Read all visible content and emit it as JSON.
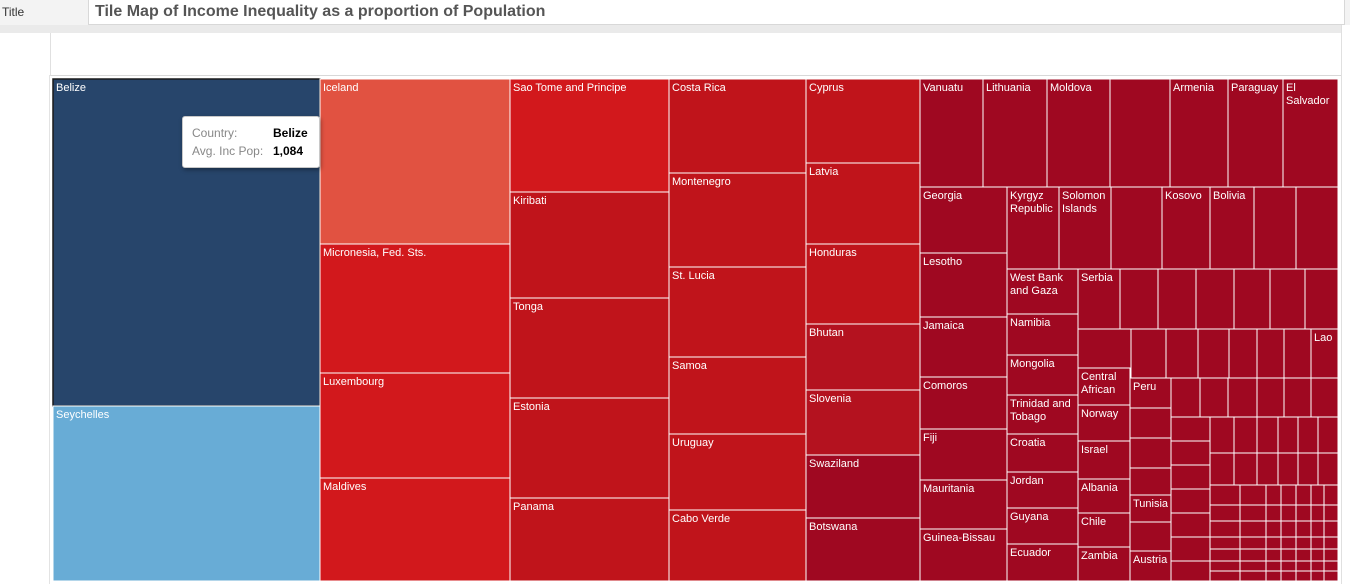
{
  "title_bar": {
    "label": "Title",
    "text": "Tile Map of Income Inequality as a proportion of  Population"
  },
  "colors": {
    "selected": "#27456b",
    "light_blue": "#68acd6",
    "orange_red": "#e15241",
    "red": "#d2181c",
    "red_mid": "#c0141b",
    "red_dark": "#b4121f",
    "crimson": "#9f0821",
    "tile_border": "#ffffff",
    "selected_border": "#1a1a1a"
  },
  "tooltip": {
    "country_label": "Country:",
    "country_value": "Belize",
    "measure_label": "Avg. Inc Pop:",
    "measure_value": "1,084"
  },
  "chart_data": {
    "type": "treemap",
    "title": "Tile Map of Income Inequality as a proportion of  Population",
    "measure": "Avg. Inc Pop",
    "selected": "Belize",
    "labeled_tiles": [
      {
        "label": "Belize",
        "value": 1084
      },
      {
        "label": "Seychelles"
      },
      {
        "label": "Iceland"
      },
      {
        "label": "Micronesia, Fed. Sts."
      },
      {
        "label": "Luxembourg"
      },
      {
        "label": "Maldives"
      },
      {
        "label": "Sao Tome and Principe"
      },
      {
        "label": "Kiribati"
      },
      {
        "label": "Tonga"
      },
      {
        "label": "Estonia"
      },
      {
        "label": "Panama"
      },
      {
        "label": "Costa Rica"
      },
      {
        "label": "Montenegro"
      },
      {
        "label": "St. Lucia"
      },
      {
        "label": "Samoa"
      },
      {
        "label": "Uruguay"
      },
      {
        "label": "Cabo Verde"
      },
      {
        "label": "Cyprus"
      },
      {
        "label": "Latvia"
      },
      {
        "label": "Honduras"
      },
      {
        "label": "Bhutan"
      },
      {
        "label": "Slovenia"
      },
      {
        "label": "Swaziland"
      },
      {
        "label": "Botswana"
      },
      {
        "label": "Vanuatu"
      },
      {
        "label": "Lithuania"
      },
      {
        "label": "Moldova"
      },
      {
        "label": "Armenia"
      },
      {
        "label": "Paraguay"
      },
      {
        "label": "El Salvador"
      },
      {
        "label": "Georgia"
      },
      {
        "label": "Kyrgyz Republic"
      },
      {
        "label": "Solomon Islands"
      },
      {
        "label": "Kosovo"
      },
      {
        "label": "Bolivia"
      },
      {
        "label": "Lesotho"
      },
      {
        "label": "West Bank and Gaza"
      },
      {
        "label": "Serbia"
      },
      {
        "label": "Jamaica"
      },
      {
        "label": "Namibia"
      },
      {
        "label": "Lao"
      },
      {
        "label": "Mongolia"
      },
      {
        "label": "Central African"
      },
      {
        "label": "Peru"
      },
      {
        "label": "Comoros"
      },
      {
        "label": "Trinidad and Tobago"
      },
      {
        "label": "Norway"
      },
      {
        "label": "Fiji"
      },
      {
        "label": "Croatia"
      },
      {
        "label": "Israel"
      },
      {
        "label": "Mauritania"
      },
      {
        "label": "Jordan"
      },
      {
        "label": "Albania"
      },
      {
        "label": "Tunisia"
      },
      {
        "label": "Guyana"
      },
      {
        "label": "Chile"
      },
      {
        "label": "Guinea-Bissau"
      },
      {
        "label": "Ecuador"
      },
      {
        "label": "Zambia"
      },
      {
        "label": "Austria"
      }
    ]
  }
}
